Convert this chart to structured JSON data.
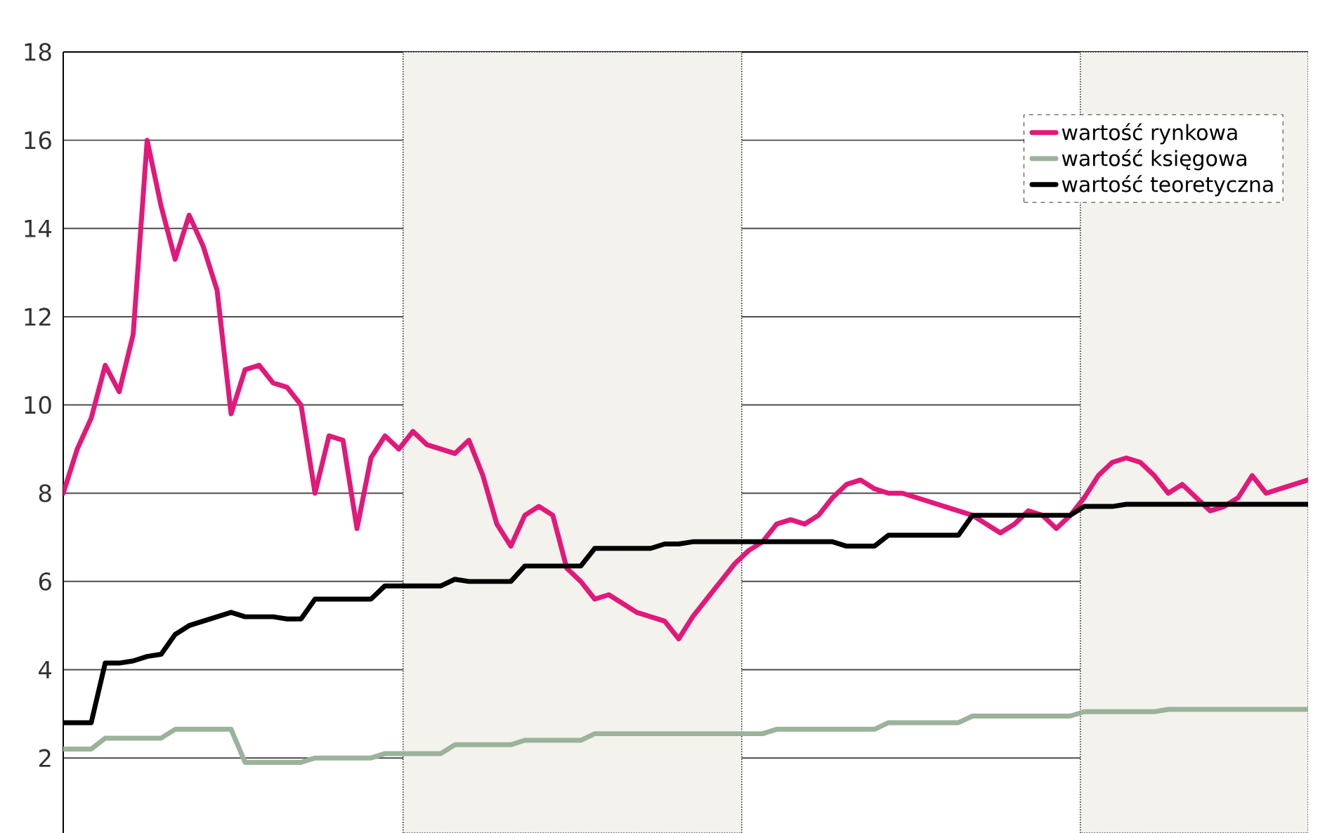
{
  "chart_data": {
    "type": "line",
    "categories": [
      null,
      null,
      null,
      null,
      null,
      null,
      null,
      null,
      null,
      null,
      null,
      null,
      null,
      null,
      null,
      null,
      null,
      null,
      null,
      null,
      null,
      null,
      null,
      null,
      null,
      null,
      null,
      null,
      null,
      null,
      null,
      null,
      null,
      null,
      null,
      null,
      null,
      null,
      null,
      null,
      null,
      null,
      null,
      null,
      null,
      null,
      null,
      null,
      null,
      null,
      null,
      null,
      null,
      null,
      null,
      null,
      null,
      null,
      null,
      null,
      null,
      null,
      null,
      null,
      null,
      null,
      null,
      null,
      null,
      null,
      null,
      null,
      null,
      null,
      null,
      null,
      null,
      null,
      null,
      null,
      null,
      null,
      null,
      null,
      null,
      null,
      null,
      null,
      null,
      null
    ],
    "ylim": [
      0.3,
      18
    ],
    "yticks": [
      2,
      4,
      6,
      8,
      10,
      12,
      14,
      16,
      18
    ],
    "tick_labels": "y",
    "grid": "y",
    "legend": "top right",
    "series": [
      {
        "name": "wartość rynkowa",
        "color": "#e2187a",
        "values": [
          8.0,
          9.0,
          9.7,
          10.9,
          10.3,
          11.6,
          16.0,
          14.5,
          13.3,
          14.3,
          13.6,
          12.6,
          9.8,
          10.8,
          10.9,
          10.5,
          10.4,
          10.0,
          8.0,
          9.3,
          9.2,
          7.2,
          8.8,
          9.3,
          9.0,
          9.4,
          9.1,
          9.0,
          8.9,
          9.2,
          8.4,
          7.3,
          6.8,
          7.5,
          7.7,
          7.5,
          6.3,
          6.0,
          5.6,
          5.7,
          5.5,
          5.3,
          5.2,
          5.1,
          4.7,
          5.2,
          5.6,
          6.0,
          6.4,
          6.7,
          6.9,
          7.3,
          7.4,
          7.3,
          7.5,
          7.9,
          8.2,
          8.3,
          8.1,
          8.0,
          8.0,
          7.9,
          7.8,
          7.7,
          7.6,
          7.5,
          7.3,
          7.1,
          7.3,
          7.6,
          7.5,
          7.2,
          7.5,
          7.9,
          8.4,
          8.7,
          8.8,
          8.7,
          8.4,
          8.0,
          8.2,
          7.9,
          7.6,
          7.7,
          7.9,
          8.4,
          8.0,
          8.1,
          8.2,
          8.3
        ]
      },
      {
        "name": "wartość księgowa",
        "color": "#9bb29b",
        "values": [
          2.2,
          2.2,
          2.2,
          2.45,
          2.45,
          2.45,
          2.45,
          2.45,
          2.65,
          2.65,
          2.65,
          2.65,
          2.65,
          1.9,
          1.9,
          1.9,
          1.9,
          1.9,
          2.0,
          2.0,
          2.0,
          2.0,
          2.0,
          2.1,
          2.1,
          2.1,
          2.1,
          2.1,
          2.3,
          2.3,
          2.3,
          2.3,
          2.3,
          2.4,
          2.4,
          2.4,
          2.4,
          2.4,
          2.55,
          2.55,
          2.55,
          2.55,
          2.55,
          2.55,
          2.55,
          2.55,
          2.55,
          2.55,
          2.55,
          2.55,
          2.55,
          2.65,
          2.65,
          2.65,
          2.65,
          2.65,
          2.65,
          2.65,
          2.65,
          2.8,
          2.8,
          2.8,
          2.8,
          2.8,
          2.8,
          2.95,
          2.95,
          2.95,
          2.95,
          2.95,
          2.95,
          2.95,
          2.95,
          3.05,
          3.05,
          3.05,
          3.05,
          3.05,
          3.05,
          3.1,
          3.1,
          3.1,
          3.1,
          3.1,
          3.1,
          3.1,
          3.1,
          3.1,
          3.1,
          3.1
        ]
      },
      {
        "name": "wartość teoretyczna",
        "color": "#000000",
        "values": [
          2.8,
          2.8,
          2.8,
          4.15,
          4.15,
          4.2,
          4.3,
          4.35,
          4.8,
          5.0,
          5.1,
          5.2,
          5.3,
          5.2,
          5.2,
          5.2,
          5.15,
          5.15,
          5.6,
          5.6,
          5.6,
          5.6,
          5.6,
          5.9,
          5.9,
          5.9,
          5.9,
          5.9,
          6.05,
          6.0,
          6.0,
          6.0,
          6.0,
          6.35,
          6.35,
          6.35,
          6.35,
          6.35,
          6.75,
          6.75,
          6.75,
          6.75,
          6.75,
          6.85,
          6.85,
          6.9,
          6.9,
          6.9,
          6.9,
          6.9,
          6.9,
          6.9,
          6.9,
          6.9,
          6.9,
          6.9,
          6.8,
          6.8,
          6.8,
          7.05,
          7.05,
          7.05,
          7.05,
          7.05,
          7.05,
          7.5,
          7.5,
          7.5,
          7.5,
          7.5,
          7.5,
          7.5,
          7.5,
          7.7,
          7.7,
          7.7,
          7.75,
          7.75,
          7.75,
          7.75,
          7.75,
          7.75,
          7.75,
          7.75,
          7.75,
          7.75,
          7.75,
          7.75,
          7.75,
          7.75
        ]
      }
    ]
  }
}
